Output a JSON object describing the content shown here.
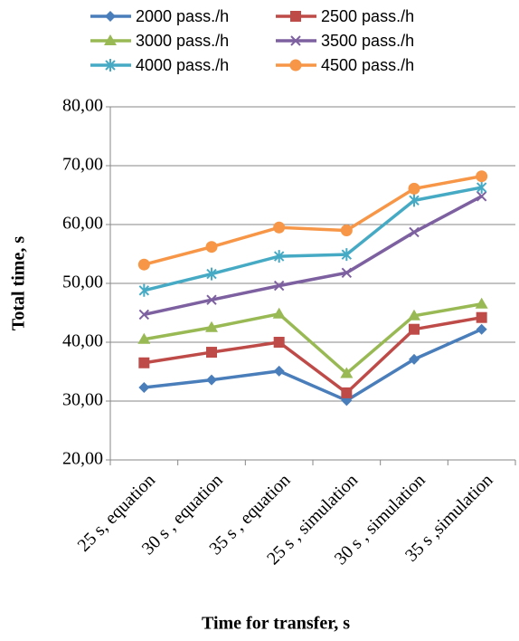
{
  "chart_data": {
    "type": "line",
    "x_label": "Time for transfer, s",
    "y_label": "Total time, s",
    "categories": [
      "25 s, equation",
      "30 s , equation",
      "35 s , equation",
      "25 s , simulation",
      "30 s , simulation",
      "35 s ,simulation"
    ],
    "series": [
      {
        "name": "2000 pass./h",
        "color": "#4a7ebb",
        "marker": "diamond",
        "values": [
          32.3,
          33.6,
          35.1,
          30.1,
          37.1,
          42.2
        ]
      },
      {
        "name": "2500 pass./h",
        "color": "#be4b48",
        "marker": "square",
        "values": [
          36.5,
          38.3,
          40.0,
          31.4,
          42.2,
          44.2
        ]
      },
      {
        "name": "3000 pass./h",
        "color": "#98b954",
        "marker": "triangle",
        "values": [
          40.5,
          42.5,
          44.8,
          34.7,
          44.5,
          46.5
        ]
      },
      {
        "name": "3500 pass./h",
        "color": "#7d60a0",
        "marker": "x",
        "values": [
          44.7,
          47.2,
          49.6,
          51.8,
          58.7,
          64.8
        ]
      },
      {
        "name": "4000 pass./h",
        "color": "#46aac5",
        "marker": "asterisk",
        "values": [
          48.8,
          51.6,
          54.6,
          54.9,
          64.1,
          66.3
        ]
      },
      {
        "name": "4500 pass./h",
        "color": "#f79646",
        "marker": "circle",
        "values": [
          53.2,
          56.2,
          59.5,
          59.0,
          66.1,
          68.2
        ]
      }
    ],
    "ylim": [
      20,
      80
    ],
    "yticks": [
      {
        "value": 20,
        "label": "20,00"
      },
      {
        "value": 30,
        "label": "30,00"
      },
      {
        "value": 40,
        "label": "40,00"
      },
      {
        "value": 50,
        "label": "50,00"
      },
      {
        "value": 60,
        "label": "60,00"
      },
      {
        "value": 70,
        "label": "70,00"
      },
      {
        "value": 80,
        "label": "80,00"
      }
    ],
    "grid": true,
    "legend": "top"
  }
}
